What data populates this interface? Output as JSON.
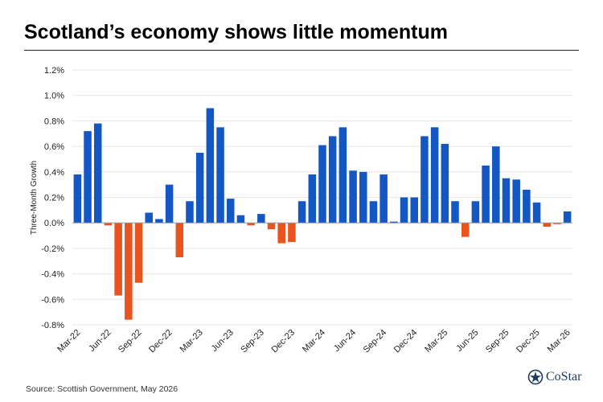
{
  "header": {
    "title": "Scotland’s economy shows little momentum"
  },
  "footer": {
    "source": "Source: Scottish Government, May 2026"
  },
  "logo": {
    "text": "CoStar",
    "icon": "costar-star-logo-icon",
    "color": "#1f3a5a"
  },
  "colors": {
    "positive": "#1357c4",
    "negative": "#e8531e",
    "grid": "#e6e6e6",
    "axis": "#999999"
  },
  "chart_data": {
    "type": "bar",
    "title": "Scotland’s economy shows little momentum",
    "ylabel": "Three-Month Growth",
    "xlabel": "",
    "ylim": [
      -0.8,
      1.2
    ],
    "yticks": [
      -0.8,
      -0.6,
      -0.4,
      -0.2,
      0.0,
      0.2,
      0.4,
      0.6,
      0.8,
      1.0,
      1.2
    ],
    "ytick_format": "percent_1dp",
    "grid": true,
    "legend": "none",
    "x_tick_labels": [
      {
        "index": 0,
        "label": "Mar-22"
      },
      {
        "index": 3,
        "label": "Jun-22"
      },
      {
        "index": 6,
        "label": "Sep-22"
      },
      {
        "index": 9,
        "label": "Dec-22"
      },
      {
        "index": 12,
        "label": "Mar-23"
      },
      {
        "index": 15,
        "label": "Jun-23"
      },
      {
        "index": 18,
        "label": "Sep-23"
      },
      {
        "index": 21,
        "label": "Dec-23"
      },
      {
        "index": 24,
        "label": "Mar-24"
      },
      {
        "index": 27,
        "label": "Jun-24"
      },
      {
        "index": 30,
        "label": "Sep-24"
      },
      {
        "index": 33,
        "label": "Dec-24"
      },
      {
        "index": 36,
        "label": "Mar-25"
      },
      {
        "index": 39,
        "label": "Jun-25"
      },
      {
        "index": 42,
        "label": "Sep-25"
      },
      {
        "index": 45,
        "label": "Dec-25"
      },
      {
        "index": 48,
        "label": "Mar-26"
      }
    ],
    "values": [
      0.38,
      0.72,
      0.78,
      -0.02,
      -0.57,
      -0.76,
      -0.47,
      0.08,
      0.03,
      0.3,
      -0.27,
      0.17,
      0.55,
      0.9,
      0.75,
      0.19,
      0.06,
      -0.02,
      0.07,
      -0.05,
      -0.16,
      -0.15,
      0.17,
      0.38,
      0.61,
      0.68,
      0.75,
      0.41,
      0.4,
      0.17,
      0.38,
      0.01,
      0.2,
      0.2,
      0.68,
      0.75,
      0.62,
      0.17,
      -0.11,
      0.17,
      0.45,
      0.6,
      0.35,
      0.34,
      0.26,
      0.16,
      -0.03,
      -0.01,
      0.09
    ]
  }
}
